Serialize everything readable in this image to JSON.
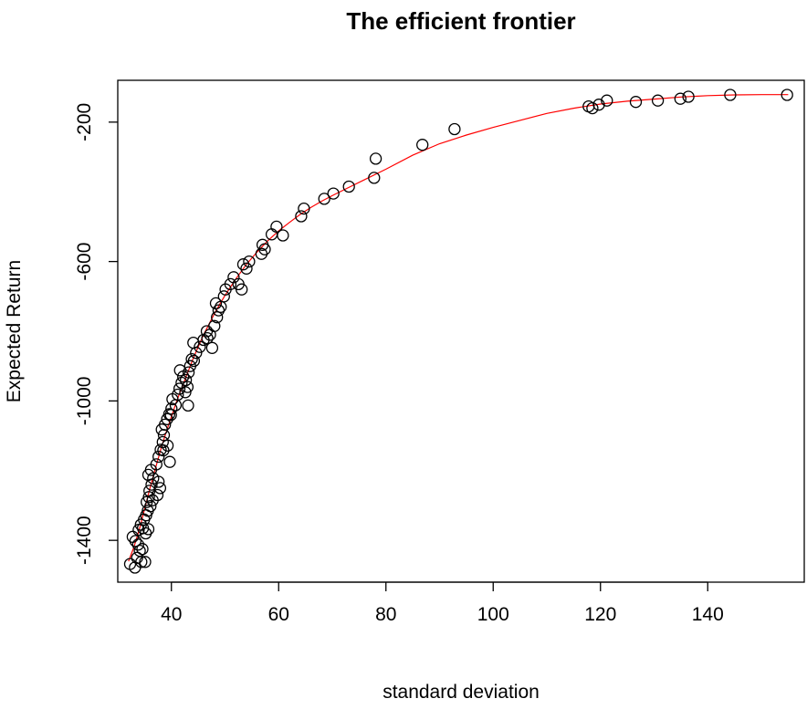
{
  "chart_data": {
    "type": "scatter",
    "title": "The efficient frontier",
    "xlabel": "standard deviation",
    "ylabel": "Expected Return",
    "xlim": [
      30,
      158
    ],
    "ylim": [
      -1520,
      -80
    ],
    "x_ticks": [
      40,
      60,
      80,
      100,
      120,
      140
    ],
    "y_ticks": [
      -1400,
      -1000,
      -600,
      -200
    ],
    "x_tick_labels": [
      "40",
      "60",
      "80",
      "100",
      "120",
      "140"
    ],
    "y_tick_labels": [
      "-1400",
      "-1000",
      "-600",
      "-200"
    ],
    "grid": false,
    "legend": "none",
    "point_color": "#000000",
    "line_color": "#ff0000",
    "points": [
      [
        32.3,
        -1468
      ],
      [
        33.2,
        -1478
      ],
      [
        33.6,
        -1450
      ],
      [
        34.4,
        -1462
      ],
      [
        35.1,
        -1462
      ],
      [
        32.8,
        -1390
      ],
      [
        33.3,
        -1402
      ],
      [
        33.8,
        -1412
      ],
      [
        34.1,
        -1430
      ],
      [
        34.6,
        -1425
      ],
      [
        33.9,
        -1370
      ],
      [
        34.3,
        -1355
      ],
      [
        34.9,
        -1340
      ],
      [
        35.3,
        -1328
      ],
      [
        34.7,
        -1365
      ],
      [
        35.2,
        -1380
      ],
      [
        35.7,
        -1368
      ],
      [
        35.6,
        -1315
      ],
      [
        36.1,
        -1302
      ],
      [
        35.4,
        -1290
      ],
      [
        35.8,
        -1276
      ],
      [
        35.9,
        -1258
      ],
      [
        36.3,
        -1240
      ],
      [
        36.6,
        -1222
      ],
      [
        35.7,
        -1212
      ],
      [
        36.2,
        -1198
      ],
      [
        36.5,
        -1285
      ],
      [
        37.4,
        -1270
      ],
      [
        37.9,
        -1250
      ],
      [
        37.6,
        -1232
      ],
      [
        37.2,
        -1182
      ],
      [
        37.6,
        -1160
      ],
      [
        38.0,
        -1140
      ],
      [
        38.4,
        -1118
      ],
      [
        38.6,
        -1098
      ],
      [
        38.2,
        -1082
      ],
      [
        38.8,
        -1068
      ],
      [
        39.2,
        -1052
      ],
      [
        39.6,
        -1038
      ],
      [
        40.0,
        -1022
      ],
      [
        38.5,
        -1142
      ],
      [
        39.3,
        -1128
      ],
      [
        39.7,
        -1175
      ],
      [
        39.9,
        -1040
      ],
      [
        40.2,
        -995
      ],
      [
        40.8,
        -1012
      ],
      [
        41.2,
        -982
      ],
      [
        41.5,
        -965
      ],
      [
        41.9,
        -948
      ],
      [
        42.2,
        -930
      ],
      [
        42.6,
        -975
      ],
      [
        43.0,
        -960
      ],
      [
        43.1,
        -1013
      ],
      [
        42.7,
        -940
      ],
      [
        41.6,
        -912
      ],
      [
        43.2,
        -918
      ],
      [
        43.5,
        -900
      ],
      [
        43.8,
        -880
      ],
      [
        44.2,
        -885
      ],
      [
        44.1,
        -833
      ],
      [
        44.6,
        -862
      ],
      [
        45.3,
        -845
      ],
      [
        46.0,
        -825
      ],
      [
        46.6,
        -800
      ],
      [
        47.2,
        -810
      ],
      [
        46.7,
        -820
      ],
      [
        47.6,
        -848
      ],
      [
        48.0,
        -785
      ],
      [
        48.5,
        -760
      ],
      [
        48.8,
        -740
      ],
      [
        48.3,
        -720
      ],
      [
        49.2,
        -730
      ],
      [
        49.8,
        -700
      ],
      [
        50.1,
        -680
      ],
      [
        51.0,
        -665
      ],
      [
        51.6,
        -645
      ],
      [
        52.5,
        -665
      ],
      [
        53.1,
        -680
      ],
      [
        53.4,
        -608
      ],
      [
        54.0,
        -620
      ],
      [
        54.5,
        -600
      ],
      [
        56.8,
        -578
      ],
      [
        57.0,
        -552
      ],
      [
        57.4,
        -565
      ],
      [
        58.7,
        -522
      ],
      [
        59.6,
        -500
      ],
      [
        60.8,
        -525
      ],
      [
        64.2,
        -470
      ],
      [
        64.7,
        -448
      ],
      [
        68.5,
        -420
      ],
      [
        70.2,
        -405
      ],
      [
        73.1,
        -385
      ],
      [
        77.8,
        -360
      ],
      [
        78.1,
        -305
      ],
      [
        86.8,
        -265
      ],
      [
        92.8,
        -220
      ],
      [
        117.8,
        -155
      ],
      [
        118.5,
        -160
      ],
      [
        119.7,
        -150
      ],
      [
        121.2,
        -138
      ],
      [
        126.6,
        -142
      ],
      [
        130.7,
        -138
      ],
      [
        134.9,
        -133
      ],
      [
        136.4,
        -127
      ],
      [
        144.2,
        -122
      ],
      [
        154.8,
        -122
      ]
    ],
    "frontier_line": [
      [
        32.0,
        -1460
      ],
      [
        33.0,
        -1420
      ],
      [
        34.0,
        -1370
      ],
      [
        35.0,
        -1310
      ],
      [
        36.0,
        -1250
      ],
      [
        37.0,
        -1195
      ],
      [
        38.0,
        -1140
      ],
      [
        39.0,
        -1090
      ],
      [
        40.0,
        -1045
      ],
      [
        41.0,
        -1000
      ],
      [
        42.0,
        -960
      ],
      [
        43.0,
        -920
      ],
      [
        44.0,
        -880
      ],
      [
        45.0,
        -845
      ],
      [
        46.0,
        -810
      ],
      [
        47.0,
        -780
      ],
      [
        48.0,
        -750
      ],
      [
        49.0,
        -723
      ],
      [
        50.0,
        -697
      ],
      [
        52.0,
        -650
      ],
      [
        54.0,
        -608
      ],
      [
        56.0,
        -572
      ],
      [
        58.0,
        -540
      ],
      [
        60.0,
        -512
      ],
      [
        62.0,
        -488
      ],
      [
        64.0,
        -465
      ],
      [
        66.0,
        -445
      ],
      [
        68.0,
        -427
      ],
      [
        70.0,
        -411
      ],
      [
        73.0,
        -388
      ],
      [
        76.0,
        -365
      ],
      [
        80.0,
        -335
      ],
      [
        85.0,
        -295
      ],
      [
        90.0,
        -262
      ],
      [
        95.0,
        -237
      ],
      [
        100.0,
        -215
      ],
      [
        105.0,
        -195
      ],
      [
        110.0,
        -175
      ],
      [
        115.0,
        -160
      ],
      [
        120.0,
        -148
      ],
      [
        125.0,
        -140
      ],
      [
        130.0,
        -134
      ],
      [
        135.0,
        -128
      ],
      [
        140.0,
        -124
      ],
      [
        145.0,
        -122
      ],
      [
        150.0,
        -121
      ],
      [
        155.0,
        -121
      ]
    ]
  }
}
